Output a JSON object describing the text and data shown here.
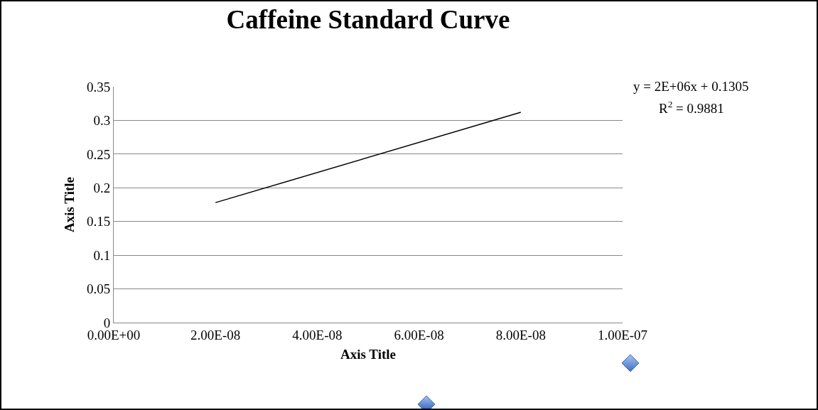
{
  "chart_data": {
    "type": "line",
    "title": "Caffeine Standard Curve",
    "xlabel": "Axis Title",
    "ylabel": "Axis Title",
    "series": [
      {
        "color": "#000000",
        "x": [
          2e-08,
          8e-08
        ],
        "values": [
          0.178,
          0.312
        ]
      }
    ],
    "xlim": [
      0,
      1e-07
    ],
    "xticks": [
      {
        "value": 0,
        "label": "0.00E+00"
      },
      {
        "value": 2e-08,
        "label": "2.00E-08"
      },
      {
        "value": 4e-08,
        "label": "4.00E-08"
      },
      {
        "value": 6e-08,
        "label": "6.00E-08"
      },
      {
        "value": 8e-08,
        "label": "8.00E-08"
      },
      {
        "value": 1e-07,
        "label": "1.00E-07"
      }
    ],
    "ylim": [
      0,
      0.35
    ],
    "yticks": [
      0,
      0.05,
      0.1,
      0.15,
      0.2,
      0.25,
      0.3,
      0.35
    ],
    "grid": "y",
    "marker": "none",
    "line_style": "solid",
    "annotations": [
      "y = 2E+06x + 0.1305",
      "R$^{2}$ = 0.9881"
    ]
  }
}
